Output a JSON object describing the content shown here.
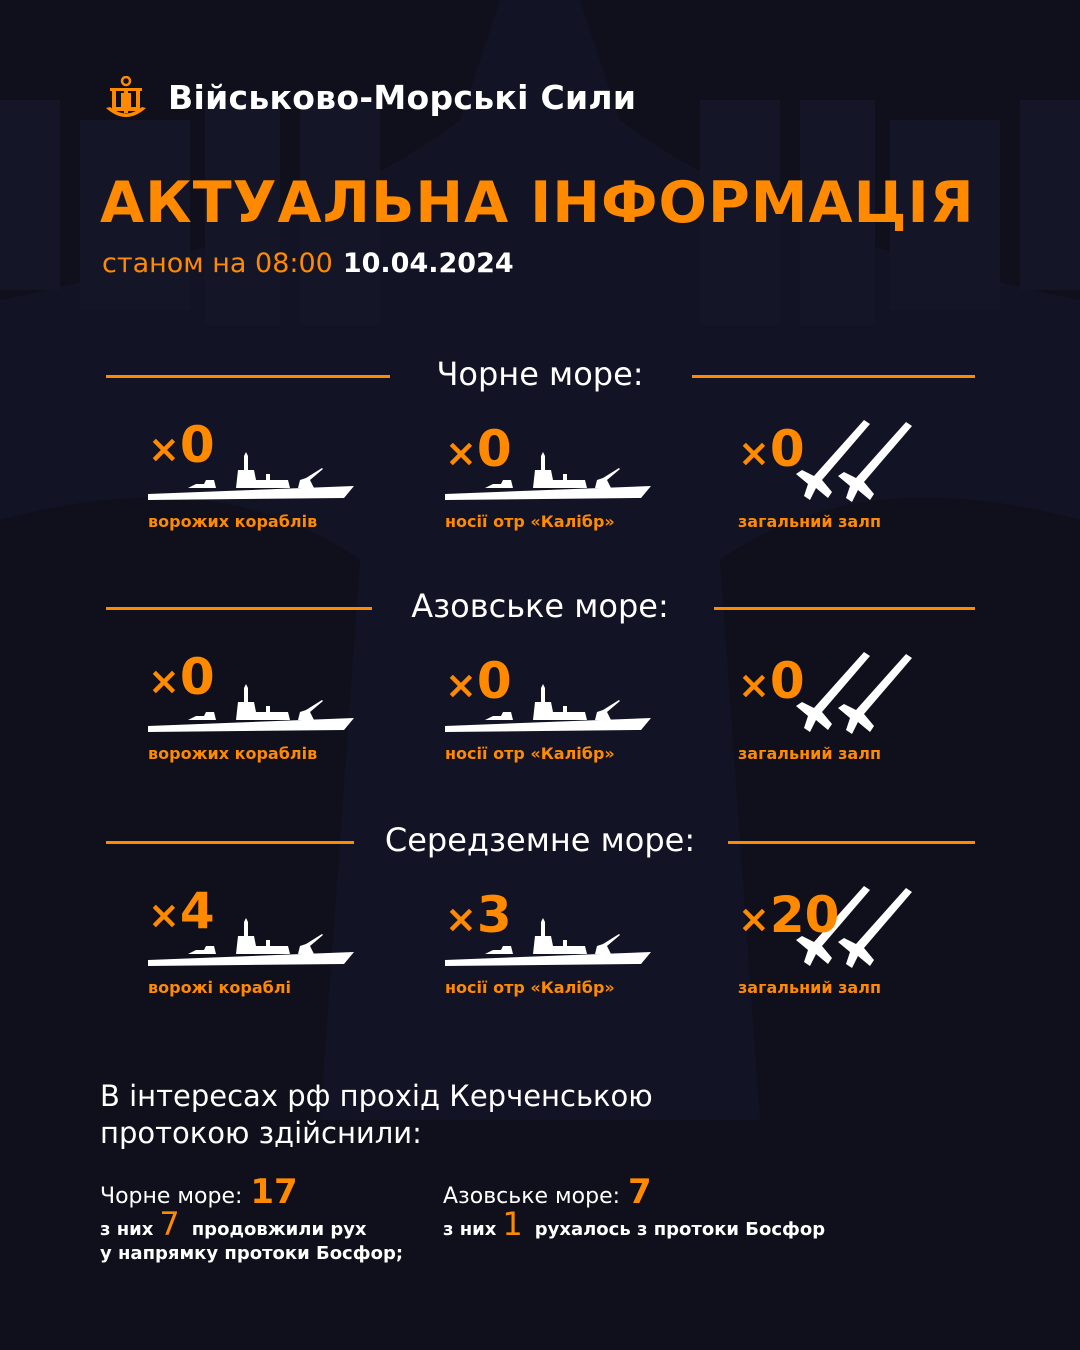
{
  "header": {
    "brand": "Військово-Морські Сили",
    "title": "АКТУАЛЬНА ІНФОРМАЦІЯ",
    "status_prefix": "станом на 08:00",
    "date": "10.04.2024"
  },
  "colors": {
    "accent": "#ff8a00",
    "background": "#0f101c",
    "text": "#ffffff"
  },
  "seas": [
    {
      "title": "Чорне море:",
      "items": [
        {
          "count": "0",
          "label": "ворожих кораблів",
          "icon": "warship-icon"
        },
        {
          "count": "0",
          "label": "носії отр «Калібр»",
          "icon": "warship-icon"
        },
        {
          "count": "0",
          "label": "загальний залп",
          "icon": "missile-icon"
        }
      ]
    },
    {
      "title": "Азовське море:",
      "items": [
        {
          "count": "0",
          "label": "ворожих кораблів",
          "icon": "warship-icon"
        },
        {
          "count": "0",
          "label": "носії отр «Калібр»",
          "icon": "warship-icon"
        },
        {
          "count": "0",
          "label": "загальний залп",
          "icon": "missile-icon"
        }
      ]
    },
    {
      "title": "Середземне море:",
      "items": [
        {
          "count": "4",
          "label": "ворожі кораблі",
          "icon": "warship-icon"
        },
        {
          "count": "3",
          "label": "носії отр «Калібр»",
          "icon": "warship-icon"
        },
        {
          "count": "20",
          "label": "загальний залп",
          "icon": "missile-icon"
        }
      ]
    }
  ],
  "multiplier": "×",
  "kerch": {
    "text_line1": "В інтересах рф прохід Керченською",
    "text_line2": "протокою здійснили:",
    "black_sea": {
      "label": "Чорне море:",
      "count": "17",
      "sub_prefix": "з них",
      "sub_count": "7",
      "sub_text1": "продовжили рух",
      "sub_text2": "у напрямку протоки Босфор;"
    },
    "azov_sea": {
      "label": "Азовське море:",
      "count": "7",
      "sub_prefix": "з них",
      "sub_count": "1",
      "sub_text1": "рухалось з протоки Босфор"
    }
  }
}
